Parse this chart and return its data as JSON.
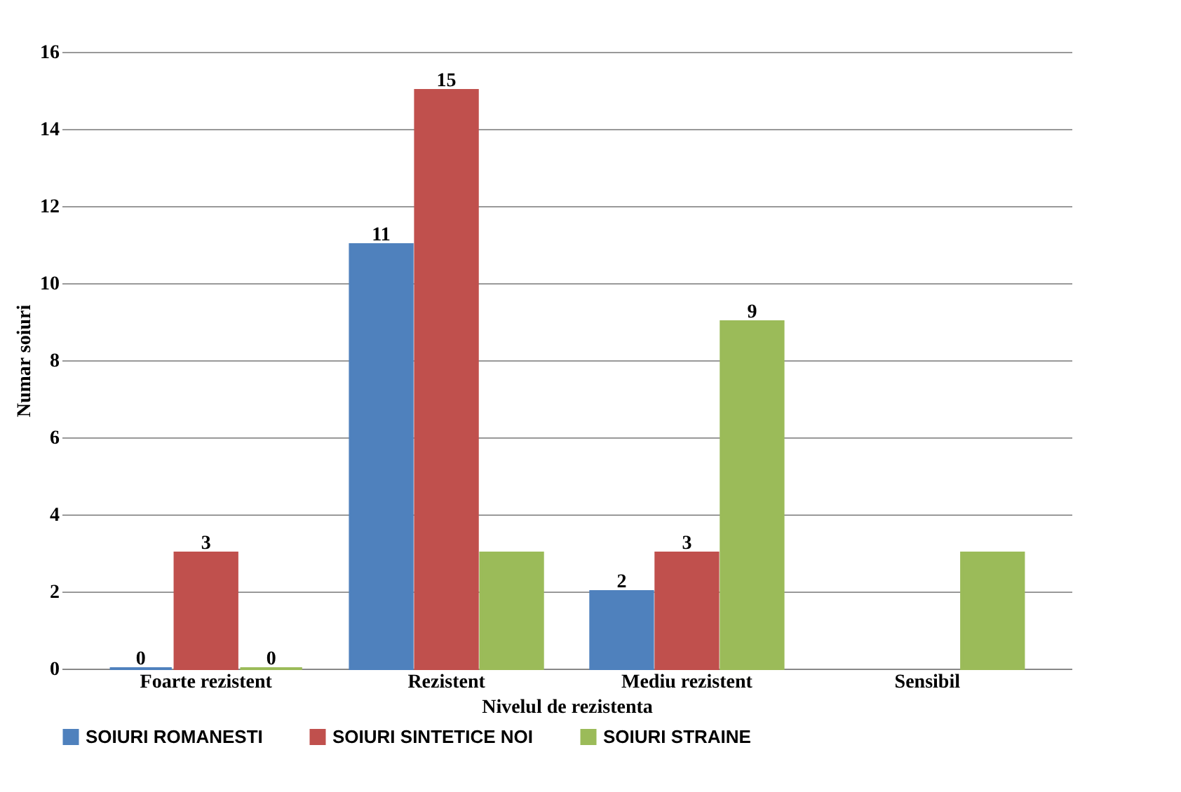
{
  "chart_data": {
    "type": "bar",
    "xlabel": "Nivelul de rezistenta",
    "ylabel": "Numar soiuri",
    "categories": [
      "Foarte rezistent",
      "Rezistent",
      "Mediu rezistent",
      "Sensibil"
    ],
    "series": [
      {
        "name": "SOIURI ROMANESTI",
        "color": "#4f81bd",
        "values": [
          0,
          11,
          2,
          null
        ],
        "value_labels": [
          "0",
          "11",
          "2",
          null
        ]
      },
      {
        "name": "SOIURI SINTETICE NOI",
        "color": "#c0504d",
        "values": [
          3,
          15,
          3,
          null
        ],
        "value_labels": [
          "3",
          "15",
          "3",
          null
        ]
      },
      {
        "name": "SOIURI STRAINE",
        "color": "#9bbb59",
        "values": [
          0,
          3,
          9,
          3
        ],
        "value_labels": [
          "0",
          null,
          "9",
          null
        ]
      }
    ],
    "ylim": [
      0,
      16
    ],
    "yticks": [
      0,
      2,
      4,
      6,
      8,
      10,
      12,
      14,
      16
    ],
    "grid": "y",
    "legend": "bottom"
  }
}
